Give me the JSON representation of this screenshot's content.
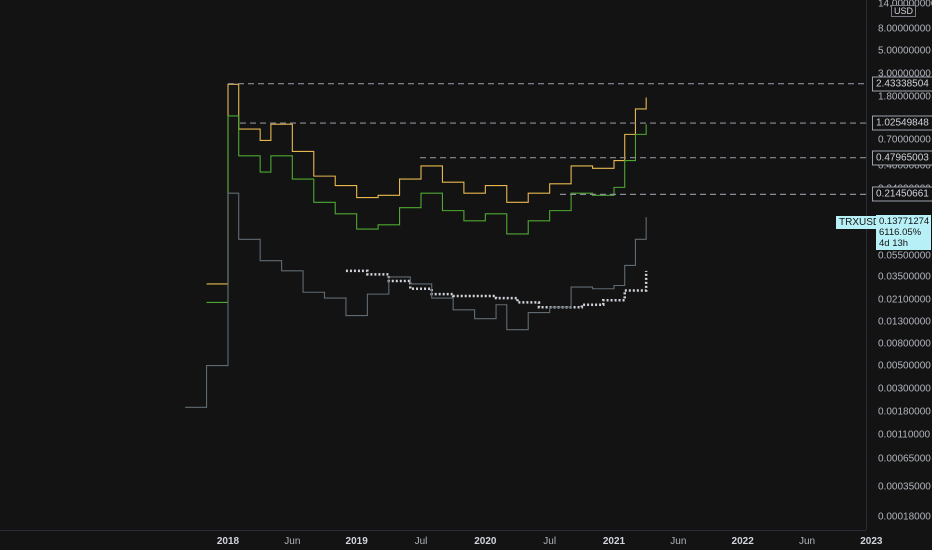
{
  "chart_data": {
    "type": "line",
    "symbol": "TRXUSD",
    "currency": "USD",
    "y_scale": "log",
    "y_ticks": [
      "14.00000000",
      "8.00000000",
      "5.00000000",
      "3.00000000",
      "1.80000000",
      "0.70000000",
      "0.40000000",
      "0.24000000",
      "0.05500000",
      "0.03500000",
      "0.02100000",
      "0.01300000",
      "0.00800000",
      "0.00500000",
      "0.00300000",
      "0.00180000",
      "0.00110000",
      "0.00065000",
      "0.00035000",
      "0.00018000"
    ],
    "x_ticks": [
      {
        "label": "2018",
        "year": true
      },
      {
        "label": "Jun",
        "year": false
      },
      {
        "label": "2019",
        "year": true
      },
      {
        "label": "Jul",
        "year": false
      },
      {
        "label": "2020",
        "year": true
      },
      {
        "label": "Jul",
        "year": false
      },
      {
        "label": "2021",
        "year": true
      },
      {
        "label": "Jun",
        "year": false
      },
      {
        "label": "2022",
        "year": true
      },
      {
        "label": "Jun",
        "year": false
      },
      {
        "label": "2023",
        "year": true
      }
    ],
    "levels": [
      "2.43338504",
      "1.02549848",
      "0.47965003",
      "0.21450661"
    ],
    "last_price": "0.13771274",
    "change": "6116.05%",
    "countdown": "4d 13h",
    "series": [
      {
        "name": "",
        "color": "#e6b84f",
        "x": [
          "2017-11",
          "2018-01",
          "2018-02",
          "2018-04",
          "2018-05",
          "2018-07",
          "2018-09",
          "2018-11",
          "2019-01",
          "2019-03",
          "2019-05",
          "2019-07",
          "2019-09",
          "2019-11",
          "2020-01",
          "2020-03",
          "2020-05",
          "2020-07",
          "2020-09",
          "2020-11",
          "2021-01",
          "2021-02",
          "2021-03",
          "2021-04"
        ],
        "y": [
          0.03,
          2.4,
          0.9,
          0.7,
          1.0,
          0.55,
          0.32,
          0.26,
          0.2,
          0.21,
          0.3,
          0.4,
          0.28,
          0.22,
          0.26,
          0.18,
          0.22,
          0.27,
          0.4,
          0.38,
          0.45,
          0.8,
          1.4,
          1.8
        ]
      },
      {
        "name": "",
        "color": "#4ea832",
        "x": [
          "2017-11",
          "2018-01",
          "2018-02",
          "2018-04",
          "2018-05",
          "2018-07",
          "2018-09",
          "2018-11",
          "2019-01",
          "2019-03",
          "2019-05",
          "2019-07",
          "2019-09",
          "2019-11",
          "2020-01",
          "2020-03",
          "2020-05",
          "2020-07",
          "2020-09",
          "2020-11",
          "2021-01",
          "2021-02",
          "2021-03",
          "2021-04"
        ],
        "y": [
          0.02,
          1.2,
          0.5,
          0.35,
          0.5,
          0.3,
          0.18,
          0.14,
          0.1,
          0.11,
          0.16,
          0.22,
          0.15,
          0.12,
          0.14,
          0.09,
          0.12,
          0.15,
          0.22,
          0.21,
          0.25,
          0.45,
          0.8,
          1.0
        ]
      },
      {
        "name": "",
        "color": "#cfd3da",
        "x": [
          "2018-12",
          "2019-02",
          "2019-04",
          "2019-06",
          "2019-08",
          "2019-10",
          "2019-12",
          "2020-02",
          "2020-04",
          "2020-06",
          "2020-08",
          "2020-10",
          "2020-12",
          "2021-02",
          "2021-04"
        ],
        "y": [
          0.04,
          0.037,
          0.032,
          0.027,
          0.024,
          0.023,
          0.023,
          0.022,
          0.02,
          0.018,
          0.018,
          0.019,
          0.021,
          0.026,
          0.04
        ]
      },
      {
        "name": "",
        "color": "#5f6b73",
        "x": [
          "2017-09",
          "2017-11",
          "2018-01",
          "2018-02",
          "2018-04",
          "2018-06",
          "2018-08",
          "2018-10",
          "2018-12",
          "2019-02",
          "2019-04",
          "2019-06",
          "2019-08",
          "2019-10",
          "2019-12",
          "2020-02",
          "2020-03",
          "2020-05",
          "2020-07",
          "2020-09",
          "2020-11",
          "2021-01",
          "2021-02",
          "2021-03",
          "2021-04"
        ],
        "y": [
          0.002,
          0.005,
          0.22,
          0.08,
          0.05,
          0.04,
          0.025,
          0.022,
          0.015,
          0.024,
          0.035,
          0.03,
          0.022,
          0.017,
          0.014,
          0.019,
          0.011,
          0.016,
          0.018,
          0.028,
          0.027,
          0.029,
          0.045,
          0.08,
          0.13
        ]
      }
    ]
  }
}
